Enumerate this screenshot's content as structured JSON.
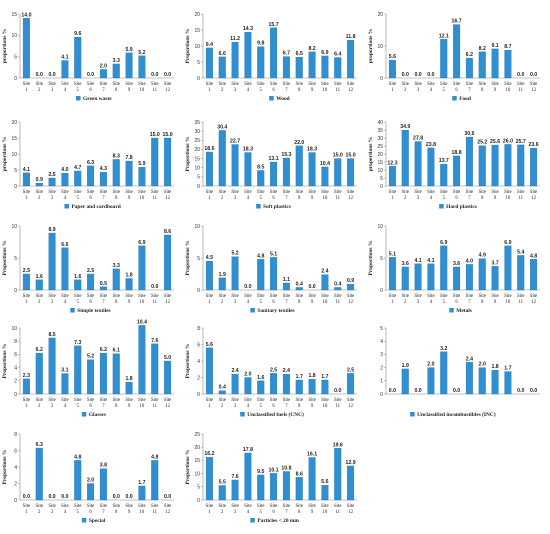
{
  "colors": {
    "bar": "#2f8fd1",
    "bar_edge": "#1d6ea8",
    "axis": "#888888",
    "text": "#222222"
  },
  "chart_data": [
    {
      "type": "bar",
      "ylabel": "proportions %",
      "legend": "Green waste",
      "ylim": [
        0,
        15
      ],
      "yticks": [
        0,
        5,
        10,
        15
      ],
      "categories": [
        "Site 1",
        "Site 2",
        "Site 3",
        "Site 4",
        "Site 5",
        "Site 6",
        "Site 7",
        "Site 8",
        "Site 9",
        "Site 10",
        "Site 11",
        "Site 12"
      ],
      "values": [
        14.0,
        0.0,
        0.0,
        4.1,
        9.6,
        0.0,
        2.0,
        3.3,
        5.9,
        5.2,
        0.0,
        0.0
      ],
      "labels": [
        "14.0",
        "0.0",
        "0.0",
        "4.1",
        "9.6",
        "0.0",
        "2.0",
        "3.3",
        "5.9",
        "5.2",
        "0.0",
        "0.0"
      ]
    },
    {
      "type": "bar",
      "ylabel": "Proportions %",
      "legend": "Wood",
      "ylim": [
        0,
        20
      ],
      "yticks": [
        0,
        5,
        10,
        15,
        20
      ],
      "categories": [
        "Site 1",
        "Site 2",
        "Site 3",
        "Site 4",
        "Site 5",
        "Site 6",
        "Site 7",
        "Site 8",
        "Site 9",
        "Site 10",
        "Site 11",
        "Site 12"
      ],
      "values": [
        9.4,
        6.6,
        11.2,
        14.3,
        9.8,
        15.7,
        6.7,
        6.5,
        8.2,
        6.9,
        6.4,
        11.8
      ],
      "labels": [
        "9.4",
        "6.6",
        "11.2",
        "14.3",
        "9.8",
        "15.7",
        "6.7",
        "6.5",
        "8.2",
        "6.9",
        "6.4",
        "11.8"
      ]
    },
    {
      "type": "bar",
      "ylabel": "proportions %",
      "legend": "Food",
      "ylim": [
        0,
        20
      ],
      "yticks": [
        0,
        10,
        20
      ],
      "categories": [
        "Site 1",
        "Site 2",
        "Site 3",
        "Site 4",
        "Site 5",
        "Site 6",
        "Site 7",
        "Site 8",
        "Site 9",
        "Site 10",
        "Site 11",
        "Site 12"
      ],
      "values": [
        5.6,
        0.0,
        0.0,
        0.0,
        12.1,
        16.7,
        6.2,
        8.2,
        9.1,
        8.7,
        0.0,
        0.0
      ],
      "labels": [
        "5.6",
        "0.0",
        "0.0",
        "0.0",
        "12.1",
        "16.7",
        "6.2",
        "8.2",
        "9.1",
        "8.7",
        "0.0",
        "0.0"
      ]
    },
    {
      "type": "bar",
      "ylabel": "proportions %",
      "legend": "Paper and cardboard",
      "ylim": [
        0,
        20
      ],
      "yticks": [
        0,
        5,
        10,
        15,
        20
      ],
      "categories": [
        "Site 1",
        "Site 2",
        "Site 3",
        "Site 4",
        "Site 5",
        "Site 6",
        "Site 7",
        "Site 8",
        "Site 9",
        "Site 10",
        "Site 11",
        "Site 12"
      ],
      "values": [
        4.1,
        0.9,
        2.5,
        4.0,
        4.7,
        6.3,
        4.3,
        8.3,
        7.8,
        5.9,
        15.0,
        15.0
      ],
      "labels": [
        "4.1",
        "0.9",
        "2.5",
        "4.0",
        "4.7",
        "6.3",
        "4.3",
        "8.3",
        "7.8",
        "5.9",
        "15.0",
        "15.0"
      ]
    },
    {
      "type": "bar",
      "ylabel": "Proportions %",
      "legend": "Soft plastics",
      "ylim": [
        0,
        35
      ],
      "yticks": [
        0,
        5,
        10,
        15,
        20,
        25,
        30,
        35
      ],
      "categories": [
        "Site 1",
        "Site 2",
        "Site 3",
        "Site 4",
        "Site 5",
        "Site 6",
        "Site 7",
        "Site 8",
        "Site 9",
        "Site 10",
        "Site 11",
        "Site 12"
      ],
      "values": [
        18.6,
        30.4,
        22.7,
        18.3,
        8.5,
        13.1,
        15.3,
        22.0,
        18.3,
        10.4,
        15.0,
        15.0
      ],
      "labels": [
        "18.6",
        "30.4",
        "22.7",
        "18.3",
        "8.5",
        "13.1",
        "15.3",
        "22.0",
        "18.3",
        "10.4",
        "15.0",
        "15.0"
      ]
    },
    {
      "type": "bar",
      "ylabel": "proportions %",
      "legend": "Hard plastics",
      "ylim": [
        0,
        40
      ],
      "yticks": [
        0,
        5,
        10,
        15,
        20,
        25,
        30,
        35,
        40
      ],
      "categories": [
        "Site 1",
        "Site 2",
        "Site 3",
        "Site 4",
        "Site 5",
        "Site 6",
        "Site 7",
        "Site 8",
        "Site 9",
        "Site 10",
        "Site 11",
        "Site 12"
      ],
      "values": [
        12.3,
        34.9,
        27.8,
        23.8,
        13.7,
        18.8,
        30.6,
        25.2,
        25.6,
        26.0,
        25.7,
        23.6
      ],
      "labels": [
        "12.3",
        "34.9",
        "27.8",
        "23.8",
        "13.7",
        "18.8",
        "30.6",
        "25.2",
        "25.6",
        "26.0",
        "25.7",
        "23.6"
      ]
    },
    {
      "type": "bar",
      "ylabel": "Proportions %",
      "legend": "Simple textiles",
      "ylim": [
        0,
        10
      ],
      "yticks": [
        0,
        5,
        10
      ],
      "categories": [
        "Site 1",
        "Site 2",
        "Site 3",
        "Site 4",
        "Site 5",
        "Site 6",
        "Site 7",
        "Site 8",
        "Site 9",
        "Site 10",
        "Site 11",
        "Site 12"
      ],
      "values": [
        2.5,
        1.6,
        8.9,
        6.6,
        1.6,
        2.5,
        0.5,
        3.3,
        1.8,
        6.9,
        0.0,
        8.6
      ],
      "labels": [
        "2.5",
        "1.6",
        "8.9",
        "6.6",
        "1.6",
        "2.5",
        "0.5",
        "3.3",
        "1.8",
        "6.9",
        "0.0",
        "8.6"
      ]
    },
    {
      "type": "bar",
      "ylabel": "Proportions %",
      "legend": "Sanitary textiles",
      "ylim": [
        0,
        10
      ],
      "yticks": [
        0,
        5,
        10
      ],
      "categories": [
        "Site 1",
        "Site 2",
        "Site 3",
        "Site 4",
        "Site 5",
        "Site 6",
        "Site 7",
        "Site 8",
        "Site 9",
        "Site 10",
        "Site 11",
        "Site 12"
      ],
      "values": [
        4.5,
        1.9,
        5.2,
        0.0,
        4.8,
        5.1,
        1.1,
        0.4,
        0.0,
        2.4,
        0.4,
        0.9
      ],
      "labels": [
        "4.5",
        "1.9",
        "5.2",
        "0.0",
        "4.8",
        "5.1",
        "1.1",
        "0.4",
        "0.0",
        "2.4",
        "0.4",
        "0.9"
      ]
    },
    {
      "type": "bar",
      "ylabel": "Proportions %",
      "legend": "Metals",
      "ylim": [
        0,
        10
      ],
      "yticks": [
        0,
        5,
        10
      ],
      "categories": [
        "Site 1",
        "Site 2",
        "Site 3",
        "Site 4",
        "Site 5",
        "Site 6",
        "Site 7",
        "Site 8",
        "Site 9",
        "Site 10",
        "Site 11",
        "Site 12"
      ],
      "values": [
        5.1,
        3.6,
        4.1,
        4.1,
        6.9,
        3.6,
        4.0,
        4.9,
        3.7,
        6.9,
        5.4,
        4.8
      ],
      "labels": [
        "5.1",
        "3.6",
        "4.1",
        "4.1",
        "6.9",
        "3.6",
        "4.0",
        "4.9",
        "3.7",
        "6.9",
        "5.4",
        "4.8"
      ]
    },
    {
      "type": "bar",
      "ylabel": "Proportions %",
      "legend": "Glasses",
      "ylim": [
        0,
        10
      ],
      "yticks": [
        0,
        2,
        4,
        6,
        8,
        10
      ],
      "categories": [
        "Site 1",
        "Site 2",
        "Site 3",
        "Site 4",
        "Site 5",
        "Site 6",
        "Site 7",
        "Site 8",
        "Site 9",
        "Site 10",
        "Site 11",
        "Site 12"
      ],
      "values": [
        2.3,
        6.2,
        8.5,
        3.1,
        7.3,
        5.2,
        6.2,
        6.1,
        1.8,
        10.4,
        7.6,
        5.0
      ],
      "labels": [
        "2.3",
        "6.2",
        "8.5",
        "3.1",
        "7.3",
        "5.2",
        "6.2",
        "6.1",
        "1.8",
        "10.4",
        "7.6",
        "5.0"
      ]
    },
    {
      "type": "bar",
      "ylabel": "Proportions %",
      "legend": "Unclassified fuels (CNC)",
      "ylim": [
        0,
        8
      ],
      "yticks": [
        0,
        2,
        4,
        6,
        8
      ],
      "categories": [
        "Site 1",
        "Site 2",
        "Site 3",
        "Site 4",
        "Site 5",
        "Site 6",
        "Site 7",
        "Site 8",
        "Site 9",
        "Site 10",
        "Site 11",
        "Site 12"
      ],
      "values": [
        5.6,
        0.4,
        2.4,
        2.0,
        1.6,
        2.5,
        2.4,
        1.7,
        1.8,
        1.7,
        0.0,
        2.5
      ],
      "labels": [
        "5.6",
        "0.4",
        "2.4",
        "2.0",
        "1.6",
        "2.5",
        "2.4",
        "1.7",
        "1.8",
        "1.7",
        "0.0",
        "2.5"
      ]
    },
    {
      "type": "bar",
      "ylabel": "",
      "legend": "Unclassified incombustibles (INC)",
      "ylim": [
        0,
        5
      ],
      "yticks": [
        0,
        1,
        2,
        3,
        4,
        5
      ],
      "categories": [
        "",
        "",
        "",
        "",
        "",
        "",
        "",
        "",
        "",
        "",
        "",
        ""
      ],
      "values": [
        0.0,
        1.9,
        0.0,
        2.0,
        3.2,
        0.0,
        2.4,
        2.0,
        1.8,
        1.7,
        0.0,
        0.0
      ],
      "labels": [
        "0.0",
        "1.9",
        "0.0",
        "2.0",
        "3.2",
        "0.0",
        "2.4",
        "2.0",
        "1.8",
        "1.7",
        "0.0",
        "0.0"
      ]
    },
    {
      "type": "bar",
      "ylabel": "Proportions %",
      "legend": "Special",
      "ylim": [
        0,
        8
      ],
      "yticks": [
        0,
        2,
        4,
        6,
        8
      ],
      "categories": [
        "Site 1",
        "Site 2",
        "Site 3",
        "Site 4",
        "Site 5",
        "Site 6",
        "Site 7",
        "Site 8",
        "Site 9",
        "Site 10",
        "Site 11",
        "Site 12"
      ],
      "values": [
        0.0,
        6.3,
        0.0,
        0.0,
        4.8,
        2.0,
        3.8,
        0.0,
        0.0,
        1.7,
        4.8,
        0.0
      ],
      "labels": [
        "0.0",
        "6.3",
        "0.0",
        "0.0",
        "4.8",
        "2.0",
        "3.8",
        "0.0",
        "0.0",
        "1.7",
        "4.8",
        "0.0"
      ]
    },
    {
      "type": "bar",
      "ylabel": "Proportions %",
      "legend": "Particles < 20 mm",
      "ylim": [
        0,
        25
      ],
      "yticks": [
        0,
        5,
        10,
        15,
        20,
        25
      ],
      "categories": [
        "Site 1",
        "Site 2",
        "Site 3",
        "Site 4",
        "Site 5",
        "Site 6",
        "Site 7",
        "Site 8",
        "Site 9",
        "Site 10",
        "Site 11",
        "Site 12"
      ],
      "values": [
        16.2,
        5.5,
        7.6,
        17.8,
        9.5,
        10.1,
        10.8,
        8.6,
        16.1,
        5.6,
        19.6,
        12.9
      ],
      "labels": [
        "16.2",
        "5.5",
        "7.6",
        "17.8",
        "9.5",
        "10.1",
        "10.8",
        "8.6",
        "16.1",
        "5.6",
        "19.6",
        "12.9"
      ]
    }
  ]
}
